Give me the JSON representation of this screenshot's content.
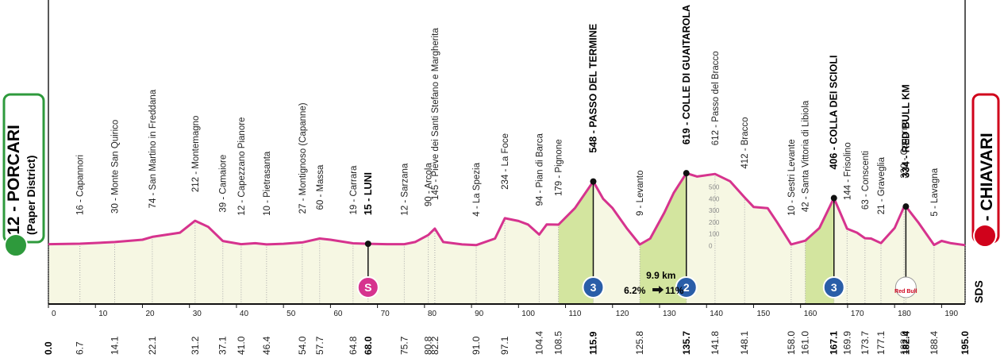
{
  "chart_data": {
    "type": "profile",
    "start": {
      "name": "12 - PORCARI",
      "subtitle": "(Paper District)"
    },
    "finish": {
      "name": "4 - CHIAVARI"
    },
    "logo": "SDS",
    "xlim": [
      0,
      195
    ],
    "xticks": [
      0,
      10,
      20,
      30,
      40,
      50,
      60,
      70,
      80,
      90,
      100,
      110,
      120,
      130,
      140,
      150,
      160,
      170,
      180,
      190
    ],
    "ylim": [
      -500,
      2100
    ],
    "yticks": [
      0,
      100,
      200,
      300,
      400,
      500
    ],
    "color": "#d6338e",
    "x": [
      0,
      6.7,
      14.1,
      20,
      22.1,
      28,
      31.2,
      34,
      37.1,
      41,
      44,
      46.4,
      50,
      54,
      57.7,
      60,
      64.8,
      68,
      72,
      75.7,
      78,
      80.8,
      82.2,
      84,
      88,
      91,
      95,
      97.1,
      100,
      102,
      104.4,
      106,
      108.5,
      112,
      115.9,
      118,
      120,
      123,
      125.8,
      128,
      131,
      133,
      135.7,
      138,
      141.8,
      145,
      148.1,
      150,
      153,
      155,
      158,
      161,
      164,
      167.1,
      169.9,
      172,
      173.7,
      175,
      177.1,
      180,
      182,
      182.4,
      185,
      188.4,
      190,
      192,
      195
    ],
    "values": [
      12,
      16,
      30,
      50,
      74,
      110,
      212,
      160,
      39,
      12,
      20,
      10,
      15,
      27,
      60,
      50,
      19,
      15,
      12,
      12,
      30,
      90,
      145,
      30,
      10,
      4,
      60,
      234,
      210,
      180,
      94,
      180,
      179,
      320,
      548,
      400,
      320,
      150,
      9,
      60,
      280,
      450,
      619,
      590,
      612,
      550,
      412,
      330,
      320,
      200,
      10,
      42,
      150,
      406,
      144,
      110,
      63,
      60,
      21,
      150,
      330,
      334,
      200,
      5,
      40,
      20,
      4
    ],
    "waypoints": {
      "x": [
        0,
        6.7,
        14.1,
        22.1,
        31.2,
        37.1,
        41,
        46.4,
        54,
        57.7,
        64.8,
        68,
        75.7,
        80.8,
        82.2,
        91,
        97.1,
        104.4,
        108.5,
        115.9,
        125.8,
        135.7,
        141.8,
        148.1,
        158,
        161,
        167.1,
        169.9,
        173.7,
        177.1,
        182,
        182.4,
        188.4,
        195
      ],
      "x_labels": [
        "0.0",
        "6.7",
        "14.1",
        "22.1",
        "31.2",
        "37.1",
        "41.0",
        "46.4",
        "54.0",
        "57.7",
        "64.8",
        "68.0",
        "75.7",
        "80.8",
        "82.2",
        "91.0",
        "97.1",
        "104.4",
        "108.5",
        "115.9",
        "125.8",
        "135.7",
        "141.8",
        "148.1",
        "158.0",
        "161.0",
        "167.1",
        "169.9",
        "173.7",
        "177.1",
        "182.0",
        "182.4",
        "188.4",
        "195.0"
      ],
      "names": [
        null,
        "16 - Capannori",
        "30 - Monte San Quirico",
        "74 - San Martino in Freddana",
        "212 - Montemagno",
        "39 - Camaiore",
        "12 - Capezzano Pianore",
        "10 - Pietrasanta",
        "27 - Montignoso (Capanne)",
        "60 - Massa",
        "19 - Carrara",
        "15 - LUNI",
        "12 - Sarzana",
        "90 - Arcola",
        "145 - Pieve dei Santi Stefano e Margherita",
        "4 - La Spezia",
        "234 - La Foce",
        "94 - Pian di Barca",
        "179 - Pignone",
        "548 - PASSO DEL TERMINE",
        "9 - Levanto",
        "619 - COLLE DI GUAITAROLA",
        "612 - Passo del Bracco",
        "412 - Bracco",
        "10 - Sestri Levante",
        "42 - Santa Vittoria di Libiola",
        "406 - COLLA DEI SCIOLI",
        "144 - Frisolino",
        "63 - Conscenti",
        "21 - Graveglia",
        "330 - Cogorno",
        "334 - RED BULL KM",
        "5 - Lavagna",
        null
      ],
      "emphasis": [
        true,
        false,
        false,
        false,
        false,
        false,
        false,
        false,
        false,
        false,
        false,
        true,
        false,
        false,
        false,
        false,
        false,
        false,
        false,
        true,
        false,
        true,
        false,
        false,
        false,
        false,
        true,
        false,
        false,
        false,
        false,
        true,
        false,
        true
      ]
    },
    "climbs": [
      [
        108.5,
        115.9
      ],
      [
        125.8,
        135.7
      ],
      [
        161,
        167.1
      ]
    ],
    "markers": [
      {
        "type": "sprint",
        "x": 68,
        "label": "S",
        "color": "#d6338e"
      },
      {
        "type": "kom",
        "x": 115.9,
        "label": "3",
        "color": "#2a5ea8"
      },
      {
        "type": "kom",
        "x": 135.7,
        "label": "2",
        "color": "#2a5ea8"
      },
      {
        "type": "kom",
        "x": 167.1,
        "label": "3",
        "color": "#2a5ea8"
      },
      {
        "type": "redbull",
        "x": 182.4,
        "label": "Red Bull",
        "color": "#d0021b"
      }
    ],
    "climb_note": {
      "length": "9.9 km",
      "avg": "6.2%",
      "max": "11%"
    }
  }
}
